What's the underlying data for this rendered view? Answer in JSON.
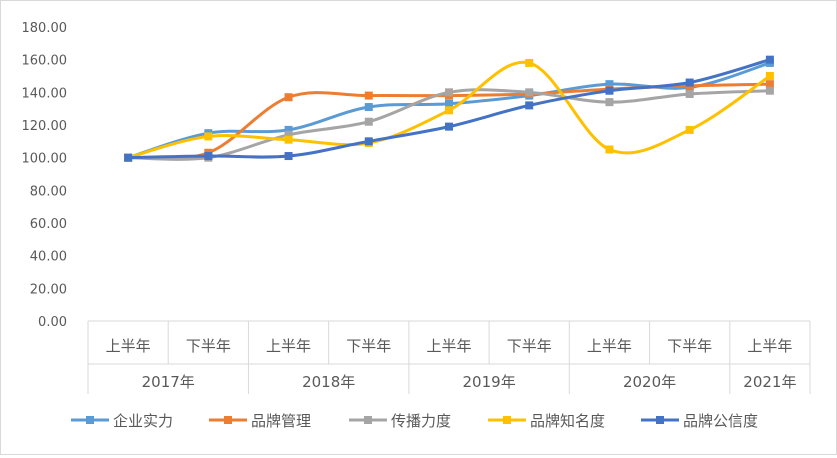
{
  "chart_data": {
    "type": "line",
    "title": "",
    "xlabel": "",
    "ylabel": "",
    "ylim": [
      0,
      180
    ],
    "yticks": [
      "0.00",
      "20.00",
      "40.00",
      "60.00",
      "80.00",
      "100.00",
      "120.00",
      "140.00",
      "160.00",
      "180.00"
    ],
    "grid": false,
    "legend_position": "bottom",
    "smooth": true,
    "categories": [
      "上半年",
      "下半年",
      "上半年",
      "下半年",
      "上半年",
      "下半年",
      "上半年",
      "下半年",
      "上半年"
    ],
    "groups": [
      {
        "label": "2017年",
        "span": 2
      },
      {
        "label": "2018年",
        "span": 2
      },
      {
        "label": "2019年",
        "span": 2
      },
      {
        "label": "2020年",
        "span": 2
      },
      {
        "label": "2021年",
        "span": 1
      }
    ],
    "series": [
      {
        "name": "企业实力",
        "color": "#5B9BD5",
        "values": [
          100,
          115,
          117,
          131,
          133,
          138,
          145,
          143,
          158
        ]
      },
      {
        "name": "品牌管理",
        "color": "#ED7D31",
        "values": [
          100,
          103,
          137,
          138,
          138,
          139,
          142,
          144,
          145
        ]
      },
      {
        "name": "传播力度",
        "color": "#A5A5A5",
        "values": [
          100,
          100,
          114,
          122,
          140,
          140,
          134,
          139,
          141
        ]
      },
      {
        "name": "品牌知名度",
        "color": "#FFC000",
        "values": [
          100,
          113,
          111,
          109,
          129,
          158,
          105,
          117,
          150
        ]
      },
      {
        "name": "品牌公信度",
        "color": "#4472C4",
        "values": [
          100,
          101,
          101,
          110,
          119,
          132,
          141,
          146,
          160
        ]
      }
    ]
  }
}
